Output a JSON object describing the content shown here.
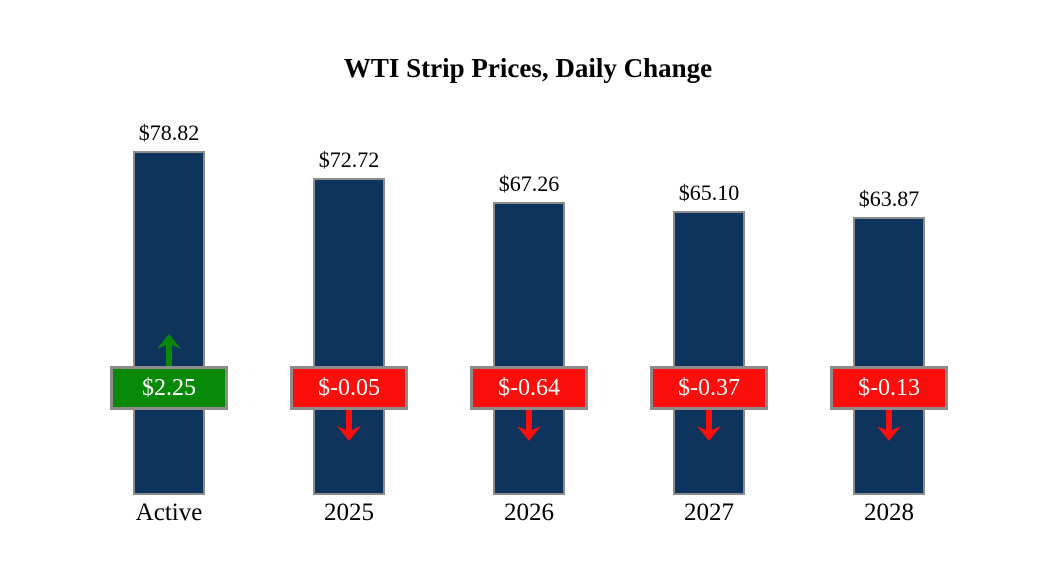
{
  "title": "WTI Strip Prices, Daily Change",
  "chart_data": {
    "type": "bar",
    "title": "WTI Strip Prices, Daily Change",
    "categories": [
      "Active",
      "2025",
      "2026",
      "2027",
      "2028"
    ],
    "values": [
      78.82,
      72.72,
      67.26,
      65.1,
      63.87
    ],
    "value_labels": [
      "$78.82",
      "$72.72",
      "$67.26",
      "$65.10",
      "$63.87"
    ],
    "changes": [
      2.25,
      -0.05,
      -0.64,
      -0.37,
      -0.13
    ],
    "change_labels": [
      "$2.25",
      "$-0.05",
      "$-0.64",
      "$-0.37",
      "$-0.13"
    ],
    "change_directions": [
      "up",
      "down",
      "down",
      "down",
      "down"
    ],
    "xlabel": "",
    "ylabel": "",
    "baseline": 0,
    "axes": "hidden",
    "gridlines": "off",
    "legend": "none"
  },
  "colors": {
    "bar_fill": "#0E345E",
    "bar_border": "#8C8C8C",
    "positive": "#088A08",
    "negative": "#FB0E0C",
    "badge_border": "#8C8C8C",
    "badge_text": "#FFFFFF",
    "label_text": "#000000",
    "background": "#FFFFFF"
  }
}
